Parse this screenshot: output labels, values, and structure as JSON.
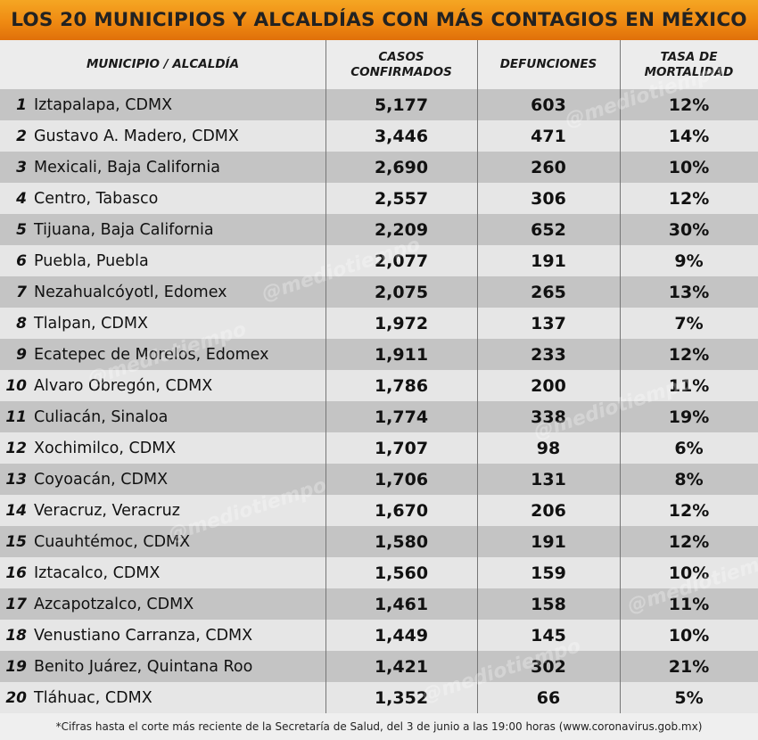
{
  "title": "LOS 20 MUNICIPIOS Y ALCALDÍAS CON MÁS CONTAGIOS EN MÉXICO",
  "headers": {
    "municipio": "MUNICIPIO / ALCALDÍA",
    "casos_l1": "CASOS",
    "casos_l2": "CONFIRMADOS",
    "defunciones": "DEFUNCIONES",
    "tasa_l1": "TASA DE",
    "tasa_l2": "MORTALIDAD"
  },
  "rows": [
    {
      "n": "1",
      "name": "Iztapalapa, CDMX",
      "casos": "5,177",
      "def": "603",
      "tasa": "12%"
    },
    {
      "n": "2",
      "name": "Gustavo A. Madero, CDMX",
      "casos": "3,446",
      "def": "471",
      "tasa": "14%"
    },
    {
      "n": "3",
      "name": "Mexicali, Baja California",
      "casos": "2,690",
      "def": "260",
      "tasa": "10%"
    },
    {
      "n": "4",
      "name": "Centro, Tabasco",
      "casos": "2,557",
      "def": "306",
      "tasa": "12%"
    },
    {
      "n": "5",
      "name": "Tijuana, Baja California",
      "casos": "2,209",
      "def": "652",
      "tasa": "30%"
    },
    {
      "n": "6",
      "name": "Puebla, Puebla",
      "casos": "2,077",
      "def": "191",
      "tasa": "9%"
    },
    {
      "n": "7",
      "name": "Nezahualcóyotl, Edomex",
      "casos": "2,075",
      "def": "265",
      "tasa": "13%"
    },
    {
      "n": "8",
      "name": "Tlalpan, CDMX",
      "casos": "1,972",
      "def": "137",
      "tasa": "7%"
    },
    {
      "n": "9",
      "name": "Ecatepec de Morelos, Edomex",
      "casos": "1,911",
      "def": "233",
      "tasa": "12%"
    },
    {
      "n": "10",
      "name": "Alvaro Obregón, CDMX",
      "casos": "1,786",
      "def": "200",
      "tasa": "11%"
    },
    {
      "n": "11",
      "name": "Culiacán, Sinaloa",
      "casos": "1,774",
      "def": "338",
      "tasa": "19%"
    },
    {
      "n": "12",
      "name": "Xochimilco, CDMX",
      "casos": "1,707",
      "def": "98",
      "tasa": "6%"
    },
    {
      "n": "13",
      "name": "Coyoacán, CDMX",
      "casos": "1,706",
      "def": "131",
      "tasa": "8%"
    },
    {
      "n": "14",
      "name": "Veracruz, Veracruz",
      "casos": "1,670",
      "def": "206",
      "tasa": "12%"
    },
    {
      "n": "15",
      "name": "Cuauhtémoc, CDMX",
      "casos": "1,580",
      "def": "191",
      "tasa": "12%"
    },
    {
      "n": "16",
      "name": "Iztacalco, CDMX",
      "casos": "1,560",
      "def": "159",
      "tasa": "10%"
    },
    {
      "n": "17",
      "name": "Azcapotzalco, CDMX",
      "casos": "1,461",
      "def": "158",
      "tasa": "11%"
    },
    {
      "n": "18",
      "name": "Venustiano Carranza, CDMX",
      "casos": "1,449",
      "def": "145",
      "tasa": "10%"
    },
    {
      "n": "19",
      "name": "Benito Juárez, Quintana Roo",
      "casos": "1,421",
      "def": "302",
      "tasa": "21%"
    },
    {
      "n": "20",
      "name": "Tláhuac, CDMX",
      "casos": "1,352",
      "def": "66",
      "tasa": "5%"
    }
  ],
  "footnote": "*Cifras hasta el corte más reciente de la Secretaría de Salud, del 3 de junio a las 19:00 horas (www.coronavirus.gob.mx)",
  "watermark_text": "@mediotiempo",
  "colors": {
    "title_bg": "#ef8a12",
    "row_dark": "#c4c4c4",
    "row_light": "#e6e6e6"
  }
}
